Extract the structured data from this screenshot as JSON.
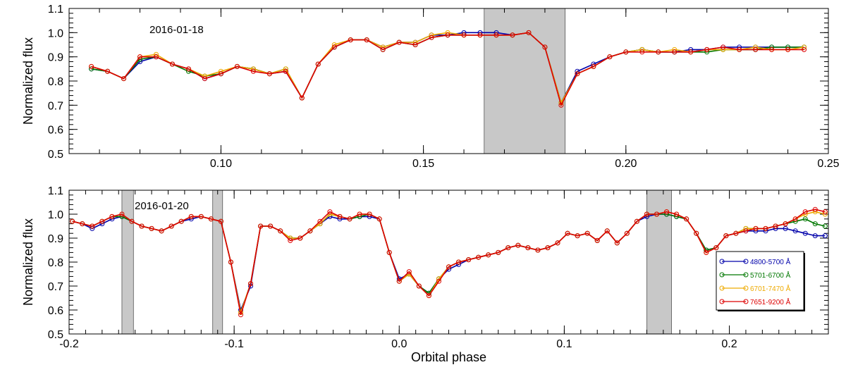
{
  "colors": {
    "band": "#c8c8c8",
    "band_edge": "#555555",
    "axis": "#000000",
    "series": [
      "#0000aa",
      "#007700",
      "#eeaa00",
      "#dd0000"
    ]
  },
  "chart_data": [
    {
      "type": "line",
      "panel_label": "2016-01-18",
      "xlabel": "",
      "ylabel": "Normalized flux",
      "xlim": [
        0.0625,
        0.25
      ],
      "ylim": [
        0.5,
        1.1
      ],
      "x_ticks": [
        0.1,
        0.15,
        0.2,
        0.25
      ],
      "x_tick_labels": [
        "0.10",
        "0.15",
        "0.20",
        "0.25"
      ],
      "y_ticks": [
        0.5,
        0.6,
        0.7,
        0.8,
        0.9,
        1.0,
        1.1
      ],
      "y_tick_labels": [
        "0.5",
        "0.6",
        "0.7",
        "0.8",
        "0.9",
        "1.0",
        "1.1"
      ],
      "shaded_regions": [
        [
          0.165,
          0.185
        ]
      ],
      "x": [
        0.068,
        0.072,
        0.076,
        0.08,
        0.084,
        0.088,
        0.092,
        0.096,
        0.1,
        0.104,
        0.108,
        0.112,
        0.116,
        0.12,
        0.124,
        0.128,
        0.132,
        0.136,
        0.14,
        0.144,
        0.148,
        0.152,
        0.156,
        0.16,
        0.164,
        0.168,
        0.172,
        0.176,
        0.18,
        0.184,
        0.188,
        0.192,
        0.196,
        0.2,
        0.204,
        0.208,
        0.212,
        0.216,
        0.22,
        0.224,
        0.228,
        0.232,
        0.236,
        0.24,
        0.244
      ],
      "series": [
        {
          "name": "4800-5700 Å",
          "values": [
            0.85,
            0.84,
            0.81,
            0.88,
            0.9,
            0.87,
            0.85,
            0.81,
            0.83,
            0.86,
            0.85,
            0.83,
            0.84,
            0.73,
            0.87,
            0.94,
            0.97,
            0.97,
            0.94,
            0.96,
            0.96,
            0.99,
            0.99,
            1.0,
            1.0,
            1.0,
            0.99,
            1.0,
            0.94,
            0.71,
            0.84,
            0.87,
            0.9,
            0.92,
            0.93,
            0.92,
            0.92,
            0.93,
            0.93,
            0.94,
            0.94,
            0.94,
            0.94,
            0.94,
            0.94
          ]
        },
        {
          "name": "5701-6700 Å",
          "values": [
            0.85,
            0.84,
            0.81,
            0.89,
            0.9,
            0.87,
            0.84,
            0.82,
            0.83,
            0.86,
            0.85,
            0.83,
            0.85,
            0.73,
            0.87,
            0.94,
            0.97,
            0.97,
            0.93,
            0.96,
            0.95,
            0.98,
            0.99,
            0.99,
            0.99,
            0.99,
            0.99,
            1.0,
            0.94,
            0.71,
            0.83,
            0.86,
            0.9,
            0.92,
            0.93,
            0.92,
            0.92,
            0.92,
            0.92,
            0.93,
            0.93,
            0.93,
            0.94,
            0.94,
            0.94
          ]
        },
        {
          "name": "6701-7470 Å",
          "values": [
            0.86,
            0.84,
            0.81,
            0.9,
            0.91,
            0.87,
            0.85,
            0.82,
            0.84,
            0.86,
            0.85,
            0.83,
            0.85,
            0.73,
            0.87,
            0.95,
            0.97,
            0.97,
            0.94,
            0.96,
            0.96,
            0.99,
            1.0,
            0.99,
            0.99,
            0.99,
            0.99,
            1.0,
            0.94,
            0.71,
            0.83,
            0.86,
            0.9,
            0.92,
            0.93,
            0.92,
            0.93,
            0.92,
            0.93,
            0.93,
            0.93,
            0.94,
            0.93,
            0.93,
            0.94
          ]
        },
        {
          "name": "7651-9200 Å",
          "values": [
            0.86,
            0.84,
            0.81,
            0.9,
            0.9,
            0.87,
            0.85,
            0.81,
            0.83,
            0.86,
            0.84,
            0.83,
            0.84,
            0.73,
            0.87,
            0.94,
            0.97,
            0.97,
            0.93,
            0.96,
            0.95,
            0.98,
            0.99,
            0.99,
            0.99,
            0.99,
            0.99,
            1.0,
            0.94,
            0.7,
            0.83,
            0.86,
            0.9,
            0.92,
            0.92,
            0.92,
            0.92,
            0.92,
            0.93,
            0.94,
            0.93,
            0.93,
            0.93,
            0.93,
            0.93
          ]
        }
      ]
    },
    {
      "type": "line",
      "panel_label": "2016-01-20",
      "xlabel": "Orbital phase",
      "ylabel": "Normalized flux",
      "xlim": [
        -0.2,
        0.26
      ],
      "ylim": [
        0.5,
        1.1
      ],
      "x_ticks": [
        -0.2,
        -0.1,
        0.0,
        0.1,
        0.2
      ],
      "x_tick_labels": [
        "-0.2",
        "-0.1",
        "0.0",
        "0.1",
        "0.2"
      ],
      "y_ticks": [
        0.5,
        0.6,
        0.7,
        0.8,
        0.9,
        1.0,
        1.1
      ],
      "y_tick_labels": [
        "0.5",
        "0.6",
        "0.7",
        "0.8",
        "0.9",
        "1.0",
        "1.1"
      ],
      "shaded_regions": [
        [
          -0.168,
          -0.161
        ],
        [
          -0.113,
          -0.107
        ],
        [
          0.15,
          0.165
        ]
      ],
      "x": [
        -0.198,
        -0.192,
        -0.186,
        -0.18,
        -0.174,
        -0.168,
        -0.162,
        -0.156,
        -0.15,
        -0.144,
        -0.138,
        -0.132,
        -0.126,
        -0.12,
        -0.114,
        -0.108,
        -0.102,
        -0.096,
        -0.09,
        -0.084,
        -0.078,
        -0.072,
        -0.066,
        -0.06,
        -0.054,
        -0.048,
        -0.042,
        -0.036,
        -0.03,
        -0.024,
        -0.018,
        -0.012,
        -0.006,
        0.0,
        0.006,
        0.012,
        0.018,
        0.024,
        0.03,
        0.036,
        0.042,
        0.048,
        0.054,
        0.06,
        0.066,
        0.072,
        0.078,
        0.084,
        0.09,
        0.096,
        0.102,
        0.108,
        0.114,
        0.12,
        0.126,
        0.132,
        0.138,
        0.144,
        0.15,
        0.156,
        0.162,
        0.168,
        0.174,
        0.18,
        0.186,
        0.192,
        0.198,
        0.204,
        0.21,
        0.216,
        0.222,
        0.228,
        0.234,
        0.24,
        0.246,
        0.252,
        0.258
      ],
      "series": [
        {
          "name": "4800-5700 Å",
          "values": [
            0.97,
            0.96,
            0.94,
            0.96,
            0.98,
            0.99,
            0.97,
            0.95,
            0.94,
            0.93,
            0.95,
            0.97,
            0.98,
            0.99,
            0.98,
            0.97,
            0.8,
            0.6,
            0.7,
            0.95,
            0.95,
            0.93,
            0.9,
            0.9,
            0.93,
            0.96,
            0.99,
            0.98,
            0.98,
            0.99,
            0.99,
            0.98,
            0.84,
            0.73,
            0.75,
            0.7,
            0.67,
            0.73,
            0.77,
            0.79,
            0.81,
            0.82,
            0.83,
            0.84,
            0.86,
            0.87,
            0.86,
            0.85,
            0.86,
            0.88,
            0.92,
            0.91,
            0.92,
            0.89,
            0.93,
            0.88,
            0.92,
            0.97,
            0.99,
            1.0,
            1.0,
            0.99,
            0.98,
            0.92,
            0.85,
            0.86,
            0.91,
            0.92,
            0.93,
            0.93,
            0.93,
            0.94,
            0.94,
            0.93,
            0.92,
            0.91,
            0.91
          ]
        },
        {
          "name": "5701-6700 Å",
          "values": [
            0.97,
            0.96,
            0.95,
            0.97,
            0.99,
            0.99,
            0.97,
            0.95,
            0.94,
            0.93,
            0.95,
            0.97,
            0.99,
            0.99,
            0.98,
            0.97,
            0.8,
            0.59,
            0.71,
            0.95,
            0.95,
            0.93,
            0.9,
            0.9,
            0.93,
            0.96,
            1.0,
            0.99,
            0.98,
            0.99,
            1.0,
            0.98,
            0.84,
            0.72,
            0.75,
            0.7,
            0.67,
            0.73,
            0.78,
            0.8,
            0.81,
            0.82,
            0.83,
            0.84,
            0.86,
            0.87,
            0.86,
            0.85,
            0.86,
            0.88,
            0.92,
            0.91,
            0.92,
            0.89,
            0.93,
            0.88,
            0.92,
            0.97,
            1.0,
            1.0,
            1.0,
            0.99,
            0.98,
            0.92,
            0.85,
            0.86,
            0.91,
            0.92,
            0.94,
            0.94,
            0.94,
            0.95,
            0.96,
            0.97,
            0.98,
            0.96,
            0.95
          ]
        },
        {
          "name": "6701-7470 Å",
          "values": [
            0.97,
            0.96,
            0.95,
            0.97,
            0.99,
            1.0,
            0.97,
            0.95,
            0.94,
            0.93,
            0.95,
            0.97,
            0.99,
            0.99,
            0.98,
            0.97,
            0.8,
            0.59,
            0.71,
            0.95,
            0.95,
            0.93,
            0.9,
            0.9,
            0.93,
            0.96,
            1.0,
            0.99,
            0.98,
            1.0,
            1.0,
            0.98,
            0.84,
            0.72,
            0.75,
            0.7,
            0.66,
            0.73,
            0.78,
            0.8,
            0.81,
            0.82,
            0.83,
            0.84,
            0.86,
            0.87,
            0.86,
            0.85,
            0.86,
            0.88,
            0.92,
            0.91,
            0.92,
            0.89,
            0.93,
            0.88,
            0.92,
            0.97,
            1.0,
            1.0,
            1.01,
            1.0,
            0.98,
            0.92,
            0.84,
            0.86,
            0.91,
            0.92,
            0.94,
            0.94,
            0.94,
            0.95,
            0.96,
            0.98,
            1.0,
            1.01,
            1.0
          ]
        },
        {
          "name": "7651-9200 Å",
          "values": [
            0.97,
            0.96,
            0.95,
            0.97,
            0.99,
            1.0,
            0.97,
            0.95,
            0.94,
            0.93,
            0.95,
            0.97,
            0.99,
            0.99,
            0.98,
            0.97,
            0.8,
            0.58,
            0.71,
            0.95,
            0.95,
            0.93,
            0.89,
            0.9,
            0.93,
            0.97,
            1.01,
            0.99,
            0.98,
            1.0,
            1.0,
            0.98,
            0.84,
            0.72,
            0.76,
            0.7,
            0.66,
            0.72,
            0.78,
            0.8,
            0.81,
            0.82,
            0.83,
            0.84,
            0.86,
            0.87,
            0.86,
            0.85,
            0.86,
            0.88,
            0.92,
            0.91,
            0.92,
            0.89,
            0.93,
            0.88,
            0.92,
            0.97,
            1.0,
            1.0,
            1.01,
            1.0,
            0.98,
            0.92,
            0.84,
            0.86,
            0.91,
            0.92,
            0.93,
            0.94,
            0.94,
            0.95,
            0.96,
            0.98,
            1.01,
            1.02,
            1.01
          ]
        }
      ],
      "legend": {
        "placement": "lower-right",
        "entries": [
          "4800-5700 Å",
          "5701-6700 Å",
          "6701-7470 Å",
          "7651-9200 Å"
        ]
      }
    }
  ]
}
